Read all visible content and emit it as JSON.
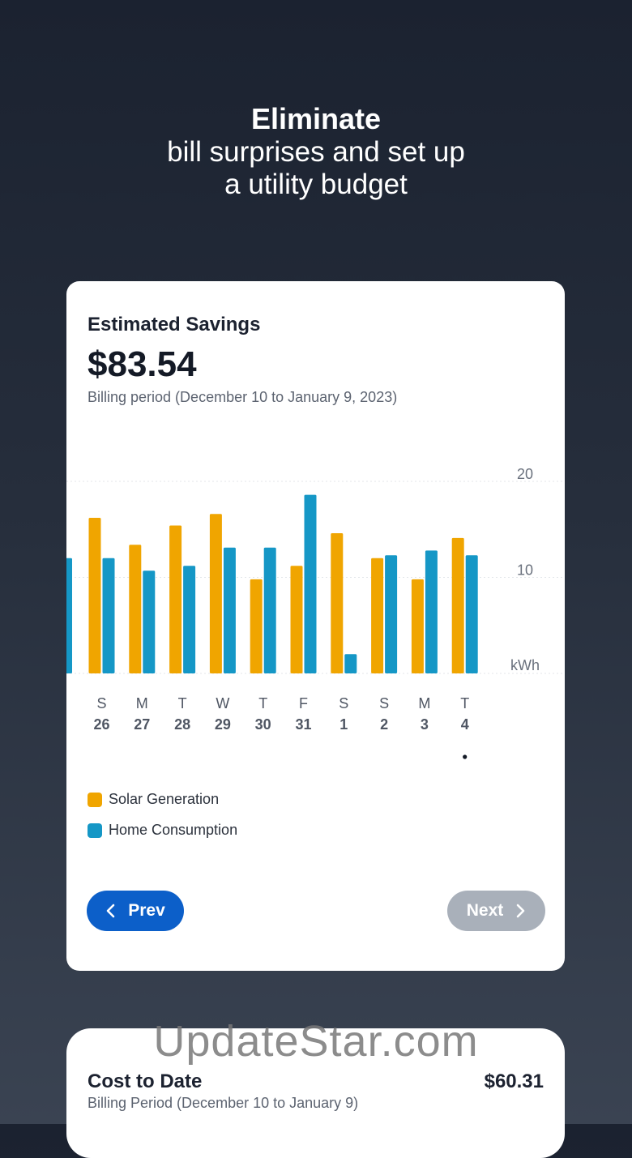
{
  "hero": {
    "line1": "Eliminate",
    "line2": "bill surprises and set up",
    "line3": "a utility budget"
  },
  "card": {
    "title": "Estimated Savings",
    "amount": "$83.54",
    "period": "Billing period (December 10 to January 9, 2023)"
  },
  "chart_data": {
    "type": "bar",
    "unit_label": "kWh",
    "yticks": [
      10,
      20
    ],
    "ylim": [
      0,
      20
    ],
    "days": [
      "S",
      "M",
      "T",
      "W",
      "T",
      "F",
      "S",
      "S",
      "M",
      "T"
    ],
    "dates": [
      "26",
      "27",
      "28",
      "29",
      "30",
      "31",
      "1",
      "2",
      "3",
      "4"
    ],
    "selected_index": 9,
    "partial_leading_consumption": 12,
    "series": [
      {
        "name": "Solar Generation",
        "color": "#f0a500",
        "values": [
          16.2,
          13.4,
          15.4,
          16.6,
          9.8,
          11.2,
          14.6,
          12.0,
          9.8,
          14.1
        ]
      },
      {
        "name": "Home Consumption",
        "color": "#1597c6",
        "values": [
          12.0,
          10.7,
          11.2,
          13.1,
          13.1,
          18.6,
          2.0,
          12.3,
          12.8,
          12.3
        ]
      }
    ]
  },
  "legend": {
    "solar": "Solar Generation",
    "home": "Home Consumption"
  },
  "nav": {
    "prev": "Prev",
    "next": "Next"
  },
  "cost_card": {
    "title": "Cost to Date",
    "value": "$60.31",
    "period": "Billing Period (December 10 to January 9)"
  },
  "watermark": "UpdateStar.com"
}
